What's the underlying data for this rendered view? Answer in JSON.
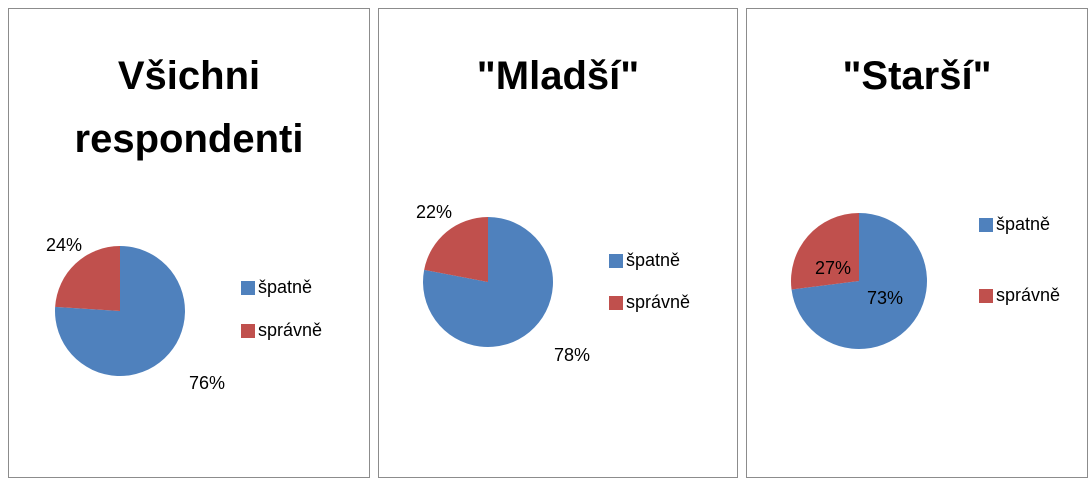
{
  "chart_data": [
    {
      "type": "pie",
      "title": "Všichni respondenti",
      "categories": [
        "špatně",
        "správně"
      ],
      "values": [
        76,
        24
      ],
      "value_labels": [
        "76%",
        "24%"
      ],
      "colors": [
        "#4f81bd",
        "#c0504d"
      ]
    },
    {
      "type": "pie",
      "title": "\"Mladší\"",
      "categories": [
        "špatně",
        "správně"
      ],
      "values": [
        78,
        22
      ],
      "value_labels": [
        "78%",
        "22%"
      ],
      "colors": [
        "#4f81bd",
        "#c0504d"
      ]
    },
    {
      "type": "pie",
      "title": "\"Starší\"",
      "categories": [
        "špatně",
        "správně"
      ],
      "values": [
        73,
        27
      ],
      "value_labels": [
        "73%",
        "27%"
      ],
      "colors": [
        "#4f81bd",
        "#c0504d"
      ]
    }
  ]
}
